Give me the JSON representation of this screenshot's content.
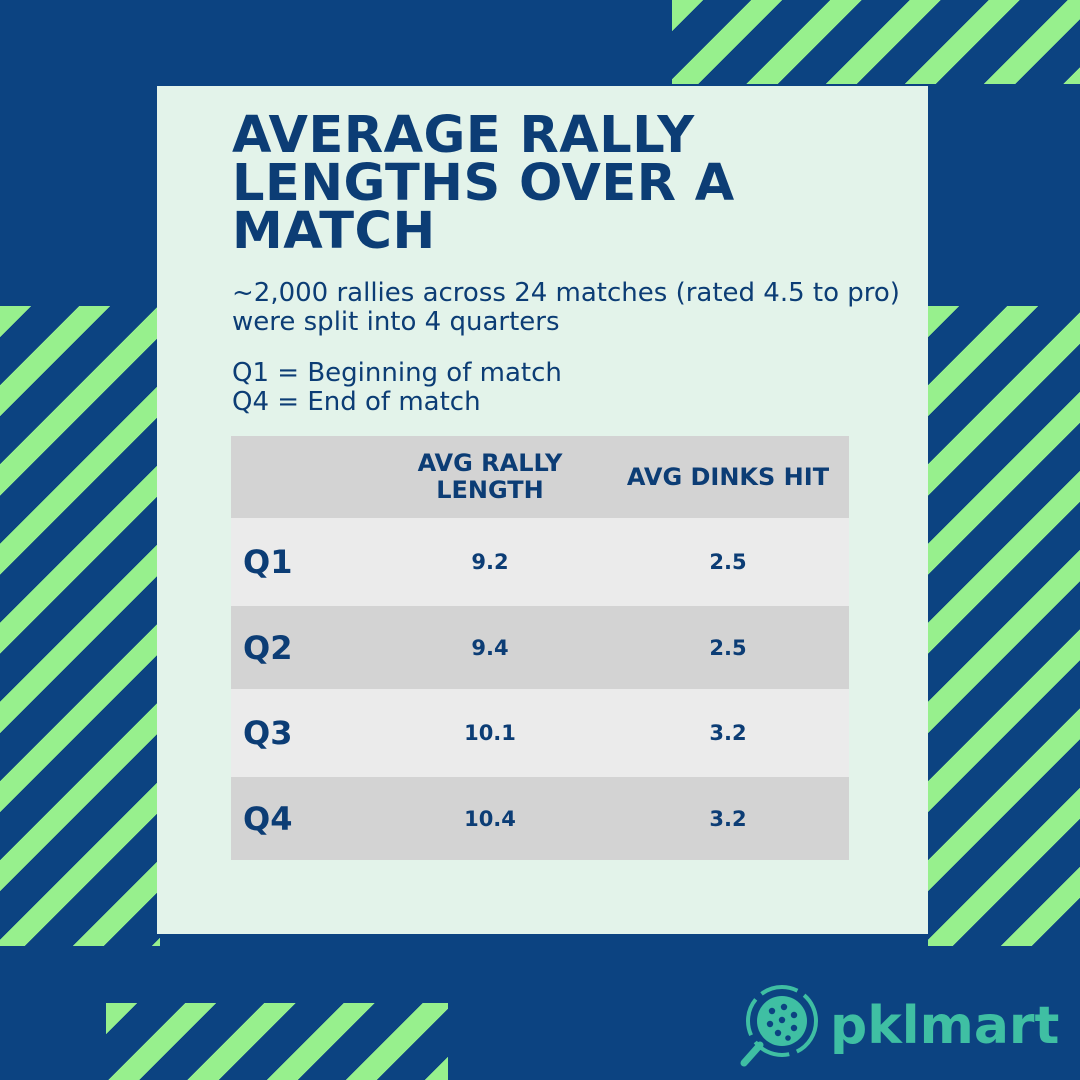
{
  "title": "AVERAGE RALLY LENGTHS OVER A MATCH",
  "subtitle": "~2,000 rallies across 24 matches (rated 4.5 to pro) were split into 4 quarters",
  "legend": [
    "Q1 = Beginning of match",
    "Q4 = End of match"
  ],
  "table": {
    "headers": [
      "",
      "AVG RALLY LENGTH",
      "AVG DINKS HIT"
    ],
    "rows": [
      {
        "quarter": "Q1",
        "avg_rally_length": "9.2",
        "avg_dinks_hit": "2.5"
      },
      {
        "quarter": "Q2",
        "avg_rally_length": "9.4",
        "avg_dinks_hit": "2.5"
      },
      {
        "quarter": "Q3",
        "avg_rally_length": "10.1",
        "avg_dinks_hit": "3.2"
      },
      {
        "quarter": "Q4",
        "avg_rally_length": "10.4",
        "avg_dinks_hit": "3.2"
      }
    ]
  },
  "brand": {
    "name": "pklmart",
    "icon": "pickleball-magnifier-icon"
  },
  "colors": {
    "background": "#0c4381",
    "stripe": "#97f08d",
    "card": "#e3f3ea",
    "text": "#0c3d75",
    "brand": "#3fbfa3"
  }
}
